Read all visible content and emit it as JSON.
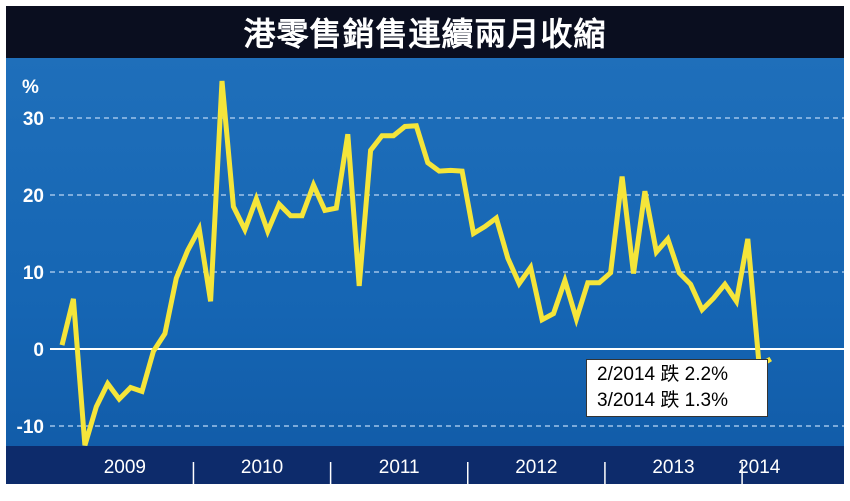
{
  "title": "港零售銷售連續兩月收縮",
  "colors": {
    "background": "#1565b3",
    "title_bg": "#0a0e1f",
    "axis_bar": "#0d2b6b",
    "line": "#f5e53a",
    "zero_line": "#ffffff",
    "grid": "#9fc4ea"
  },
  "chart_data": {
    "type": "line",
    "title": "港零售銷售連續兩月收縮",
    "ylabel": "%",
    "xlabel": "",
    "ylim": [
      -14,
      36
    ],
    "yticks": [
      30,
      20,
      10,
      0,
      -10
    ],
    "ytick_labels": [
      "30",
      "20",
      "10",
      "0",
      "-10"
    ],
    "grid": "horizontal dashed",
    "xlim": [
      "2009-01",
      "2014-03"
    ],
    "year_labels": [
      "2009",
      "2010",
      "2011",
      "2012",
      "2013",
      "2014"
    ],
    "series": [
      {
        "x": [
          "2009-01",
          "2009-02",
          "2009-03",
          "2009-04",
          "2009-05",
          "2009-06",
          "2009-07",
          "2009-08",
          "2009-09",
          "2009-10",
          "2009-11",
          "2009-12",
          "2010-01",
          "2010-02",
          "2010-03",
          "2010-04",
          "2010-05",
          "2010-06",
          "2010-07",
          "2010-08",
          "2010-09",
          "2010-10",
          "2010-11",
          "2010-12",
          "2011-01",
          "2011-02",
          "2011-03",
          "2011-04",
          "2011-05",
          "2011-06",
          "2011-07",
          "2011-08",
          "2011-09",
          "2011-10",
          "2011-11",
          "2011-12",
          "2012-01",
          "2012-02",
          "2012-03",
          "2012-04",
          "2012-05",
          "2012-06",
          "2012-07",
          "2012-08",
          "2012-09",
          "2012-10",
          "2012-11",
          "2012-12",
          "2013-01",
          "2013-02",
          "2013-03",
          "2013-04",
          "2013-05",
          "2013-06",
          "2013-07",
          "2013-08",
          "2013-09",
          "2013-10",
          "2013-11",
          "2013-12",
          "2014-01",
          "2014-02",
          "2014-03"
        ],
        "values": [
          0.5,
          6.5,
          -12.5,
          -7.5,
          -4.5,
          -6.5,
          -5.0,
          -5.5,
          -0.3,
          2.0,
          9.2,
          12.8,
          15.6,
          6.2,
          34.8,
          18.5,
          15.5,
          19.5,
          15.3,
          18.8,
          17.3,
          17.3,
          21.3,
          18.0,
          18.3,
          27.9,
          8.2,
          25.8,
          27.7,
          27.7,
          28.9,
          29.0,
          24.2,
          23.1,
          23.2,
          23.1,
          15.0,
          15.9,
          17.0,
          11.8,
          8.5,
          10.6,
          3.8,
          4.6,
          8.9,
          3.9,
          8.6,
          8.6,
          9.9,
          22.4,
          9.8,
          20.5,
          12.6,
          14.3,
          9.9,
          8.4,
          5.1,
          6.6,
          8.4,
          6.2,
          14.3,
          -2.2,
          -1.3
        ]
      }
    ],
    "annotations": [
      "2/2014 跌 2.2%",
      "3/2014 跌 1.3%"
    ]
  }
}
